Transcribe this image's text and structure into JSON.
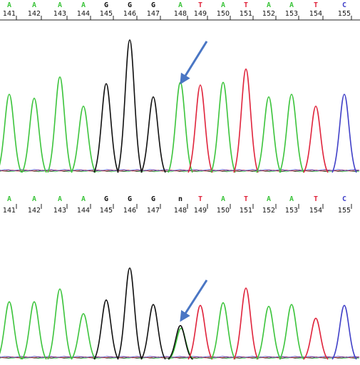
{
  "colors": {
    "A": "#3cc43c",
    "G": "#111111",
    "T": "#e0243c",
    "C": "#4040c8",
    "N": "#111111",
    "arrow": "#4a76c4"
  },
  "tracks": [
    {
      "name": "top",
      "bases": [
        "A",
        "A",
        "A",
        "A",
        "G",
        "G",
        "G",
        "A",
        "T",
        "A",
        "T",
        "A",
        "A",
        "T",
        "C"
      ],
      "positions": [
        "141",
        "142",
        "143",
        "144",
        "145",
        "146",
        "147",
        "148",
        "149",
        "150",
        "151",
        "152",
        "153",
        "154",
        "155"
      ],
      "peaks": [
        {
          "base": "A",
          "height": 0.59
        },
        {
          "base": "A",
          "height": 0.56
        },
        {
          "base": "A",
          "height": 0.72
        },
        {
          "base": "A",
          "height": 0.5
        },
        {
          "base": "G",
          "height": 0.67
        },
        {
          "base": "G",
          "height": 1.0
        },
        {
          "base": "G",
          "height": 0.57
        },
        {
          "base": "A",
          "height": 0.68
        },
        {
          "base": "T",
          "height": 0.66
        },
        {
          "base": "A",
          "height": 0.68
        },
        {
          "base": "T",
          "height": 0.78
        },
        {
          "base": "A",
          "height": 0.57
        },
        {
          "base": "A",
          "height": 0.59
        },
        {
          "base": "T",
          "height": 0.5
        },
        {
          "base": "C",
          "height": 0.59
        }
      ]
    },
    {
      "name": "bottom",
      "bases": [
        "A",
        "A",
        "A",
        "A",
        "G",
        "G",
        "G",
        "n",
        "T",
        "A",
        "T",
        "A",
        "A",
        "T",
        "C"
      ],
      "positions": [
        "141",
        "142",
        "143",
        "144",
        "145",
        "146",
        "147",
        "148",
        "149",
        "150",
        "151",
        "152",
        "153",
        "154",
        "155"
      ],
      "peaks": [
        {
          "base": "A",
          "height": 0.63
        },
        {
          "base": "A",
          "height": 0.63
        },
        {
          "base": "A",
          "height": 0.77
        },
        {
          "base": "A",
          "height": 0.5
        },
        {
          "base": "G",
          "height": 0.65
        },
        {
          "base": "G",
          "height": 1.0
        },
        {
          "base": "G",
          "height": 0.6
        },
        {
          "base": "n",
          "height": 0.37,
          "overlap_base": "A",
          "overlap_height": 0.34
        },
        {
          "base": "T",
          "height": 0.59
        },
        {
          "base": "A",
          "height": 0.62
        },
        {
          "base": "T",
          "height": 0.78
        },
        {
          "base": "A",
          "height": 0.58
        },
        {
          "base": "A",
          "height": 0.6
        },
        {
          "base": "T",
          "height": 0.45
        },
        {
          "base": "C",
          "height": 0.59
        }
      ]
    }
  ]
}
